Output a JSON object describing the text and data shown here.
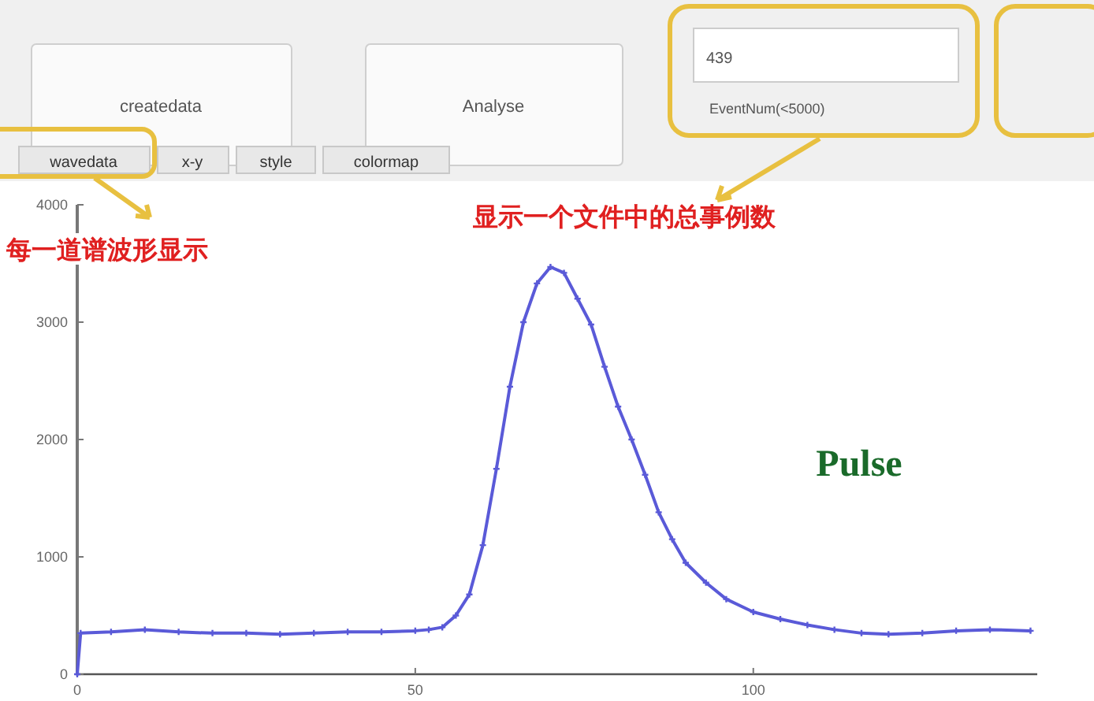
{
  "chart_data": {
    "type": "line",
    "annotations": [
      "createdata",
      "Analyse",
      "439",
      "EventNum(<5000)",
      "wavedata",
      "x-y",
      "style",
      "colormap",
      "显示一个文件中的总事例数",
      "每一道谱波形显示",
      "Pulse"
    ],
    "xlim": [
      0,
      142
    ],
    "ylim": [
      0,
      4000
    ],
    "xticks": [
      0,
      50,
      100
    ],
    "yticks": [
      0,
      1000,
      2000,
      3000,
      4000
    ],
    "marker": "cross",
    "line_style": "solid",
    "series": [
      {
        "color": "#5a5ad8",
        "x": [
          0,
          0.5,
          5,
          10,
          15,
          20,
          25,
          30,
          35,
          40,
          45,
          50,
          52,
          54,
          56,
          58,
          60,
          62,
          64,
          66,
          68,
          70,
          72,
          74,
          76,
          78,
          80,
          82,
          84,
          86,
          88,
          90,
          93,
          96,
          100,
          104,
          108,
          112,
          116,
          120,
          125,
          130,
          135,
          141
        ],
        "values": [
          0,
          350,
          360,
          380,
          360,
          350,
          350,
          340,
          350,
          360,
          360,
          370,
          380,
          400,
          500,
          680,
          1100,
          1750,
          2450,
          3000,
          3330,
          3470,
          3420,
          3200,
          2980,
          2620,
          2280,
          2000,
          1700,
          1380,
          1150,
          950,
          780,
          640,
          530,
          470,
          420,
          380,
          350,
          340,
          350,
          370,
          380,
          370
        ]
      }
    ]
  }
}
